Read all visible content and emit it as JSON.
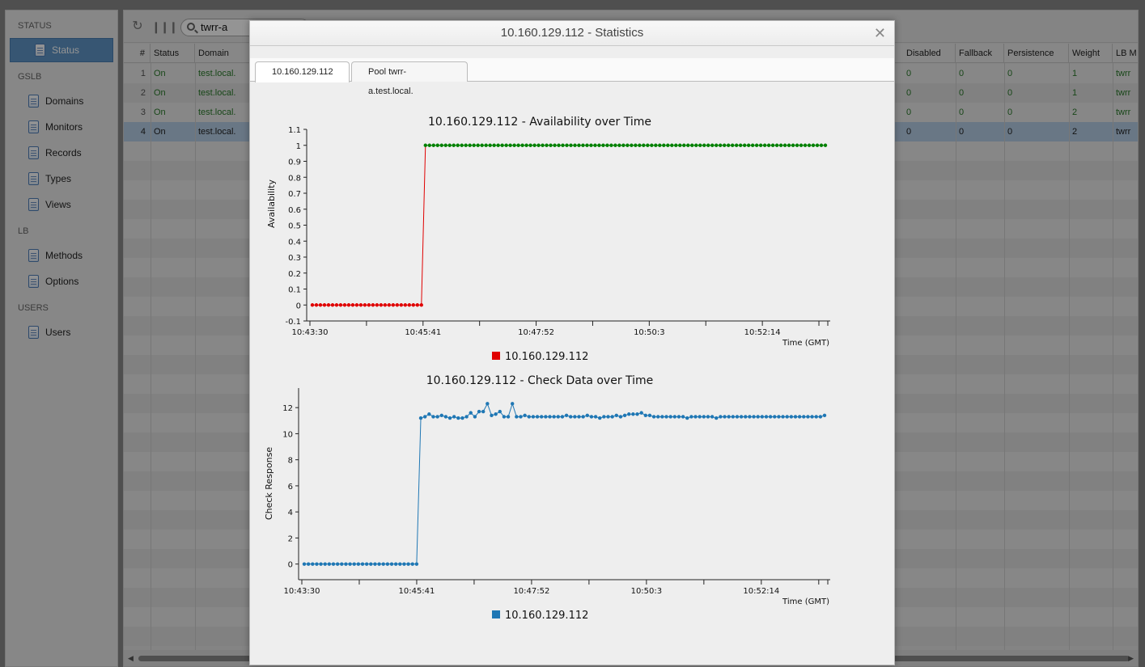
{
  "sidebar": {
    "sections": [
      {
        "heading": "STATUS",
        "items": [
          {
            "label": "Status",
            "active": true
          }
        ]
      },
      {
        "heading": "GSLB",
        "items": [
          {
            "label": "Domains"
          },
          {
            "label": "Monitors"
          },
          {
            "label": "Records"
          },
          {
            "label": "Types"
          },
          {
            "label": "Views"
          }
        ]
      },
      {
        "heading": "LB",
        "items": [
          {
            "label": "Methods"
          },
          {
            "label": "Options"
          }
        ]
      },
      {
        "heading": "USERS",
        "items": [
          {
            "label": "Users"
          }
        ]
      }
    ]
  },
  "toolbar": {
    "refresh_icon": "refresh-icon",
    "columns_icon": "columns-icon",
    "search_value": "twrr-a"
  },
  "grid": {
    "columns": {
      "num": "#",
      "status": "Status",
      "domain": "Domain",
      "disabled": "Disabled",
      "fallback": "Fallback",
      "persistence": "Persistence",
      "weight": "Weight",
      "lb_method": "LB M"
    },
    "rows": [
      {
        "num": "1",
        "status": "On",
        "domain": "test.local.",
        "disabled": "0",
        "fallback": "0",
        "persistence": "0",
        "weight": "1",
        "lb_method": "twrr"
      },
      {
        "num": "2",
        "status": "On",
        "domain": "test.local.",
        "disabled": "0",
        "fallback": "0",
        "persistence": "0",
        "weight": "1",
        "lb_method": "twrr"
      },
      {
        "num": "3",
        "status": "On",
        "domain": "test.local.",
        "disabled": "0",
        "fallback": "0",
        "persistence": "0",
        "weight": "2",
        "lb_method": "twrr"
      },
      {
        "num": "4",
        "status": "On",
        "domain": "test.local.",
        "disabled": "0",
        "fallback": "0",
        "persistence": "0",
        "weight": "2",
        "lb_method": "twrr",
        "selected": true
      }
    ]
  },
  "dialog": {
    "title": "10.160.129.112 - Statistics",
    "close_icon": "close-icon",
    "tabs": [
      {
        "label": "10.160.129.112",
        "active": true
      },
      {
        "label": "Pool twrr-a.test.local."
      }
    ]
  },
  "chart_data": [
    {
      "type": "line",
      "title": "10.160.129.112 - Availability over Time",
      "xlabel": "Time (GMT)",
      "ylabel": "Availability",
      "x_tick_labels": [
        "10:43:30",
        "10:45:41",
        "10:47:52",
        "10:50:3",
        "10:52:14"
      ],
      "ylim": [
        -0.1,
        1.1
      ],
      "y_ticks": [
        -0.1,
        0,
        0.1,
        0.2,
        0.3,
        0.4,
        0.5,
        0.6,
        0.7,
        0.8,
        0.9,
        1,
        1.1
      ],
      "legend_position": "bottom",
      "series": [
        {
          "name": "10.160.129.112",
          "legend_color": "#e00000",
          "segments": [
            {
              "color": "#e00000",
              "values": [
                0,
                0,
                0,
                0,
                0,
                0,
                0,
                0,
                0,
                0,
                0,
                0,
                0,
                0,
                0,
                0,
                0,
                0,
                0,
                0,
                0,
                0,
                0,
                0,
                0,
                0,
                0,
                0,
                1
              ]
            },
            {
              "color": "#008000",
              "values": [
                1,
                1,
                1,
                1,
                1,
                1,
                1,
                1,
                1,
                1,
                1,
                1,
                1,
                1,
                1,
                1,
                1,
                1,
                1,
                1,
                1,
                1,
                1,
                1,
                1,
                1,
                1,
                1,
                1,
                1,
                1,
                1,
                1,
                1,
                1,
                1,
                1,
                1,
                1,
                1,
                1,
                1,
                1,
                1,
                1,
                1,
                1,
                1,
                1,
                1,
                1,
                1,
                1,
                1,
                1,
                1,
                1,
                1,
                1,
                1,
                1,
                1,
                1,
                1,
                1,
                1,
                1,
                1,
                1,
                1,
                1,
                1,
                1,
                1,
                1,
                1,
                1,
                1,
                1,
                1,
                1,
                1,
                1,
                1,
                1,
                1,
                1,
                1,
                1,
                1,
                1,
                1,
                1,
                1,
                1,
                1,
                1,
                1,
                1,
                1
              ]
            }
          ]
        }
      ]
    },
    {
      "type": "line",
      "title": "10.160.129.112 - Check Data over Time",
      "xlabel": "Time (GMT)",
      "ylabel": "Check Response",
      "x_tick_labels": [
        "10:43:30",
        "10:45:41",
        "10:47:52",
        "10:50:3",
        "10:52:14"
      ],
      "ylim": [
        -1.2,
        13.5
      ],
      "y_ticks": [
        0,
        2,
        4,
        6,
        8,
        10,
        12
      ],
      "legend_position": "bottom",
      "series": [
        {
          "name": "10.160.129.112",
          "color": "#1f77b4",
          "values": [
            0,
            0,
            0,
            0,
            0,
            0,
            0,
            0,
            0,
            0,
            0,
            0,
            0,
            0,
            0,
            0,
            0,
            0,
            0,
            0,
            0,
            0,
            0,
            0,
            0,
            0,
            0,
            0,
            11.2,
            11.3,
            11.5,
            11.3,
            11.3,
            11.4,
            11.3,
            11.2,
            11.3,
            11.2,
            11.2,
            11.3,
            11.6,
            11.3,
            11.7,
            11.7,
            12.3,
            11.4,
            11.5,
            11.7,
            11.3,
            11.3,
            12.3,
            11.3,
            11.3,
            11.4,
            11.3,
            11.3,
            11.3,
            11.3,
            11.3,
            11.3,
            11.3,
            11.3,
            11.3,
            11.4,
            11.3,
            11.3,
            11.3,
            11.3,
            11.4,
            11.3,
            11.3,
            11.2,
            11.3,
            11.3,
            11.3,
            11.4,
            11.3,
            11.4,
            11.5,
            11.5,
            11.5,
            11.6,
            11.4,
            11.4,
            11.3,
            11.3,
            11.3,
            11.3,
            11.3,
            11.3,
            11.3,
            11.3,
            11.2,
            11.3,
            11.3,
            11.3,
            11.3,
            11.3,
            11.3,
            11.2,
            11.3,
            11.3,
            11.3,
            11.3,
            11.3,
            11.3,
            11.3,
            11.3,
            11.3,
            11.3,
            11.3,
            11.3,
            11.3,
            11.3,
            11.3,
            11.3,
            11.3,
            11.3,
            11.3,
            11.3,
            11.3,
            11.3,
            11.3,
            11.3,
            11.3,
            11.4
          ]
        }
      ]
    }
  ]
}
